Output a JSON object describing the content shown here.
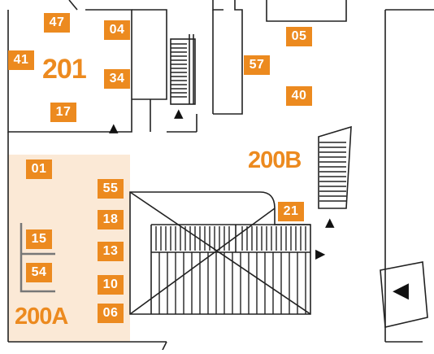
{
  "rooms": {
    "r201": "201",
    "r200B": "200B",
    "r200A": "200A"
  },
  "tags": {
    "t47": "47",
    "t04": "04",
    "t41": "41",
    "t34": "34",
    "t17": "17",
    "t05": "05",
    "t57": "57",
    "t40": "40",
    "t01": "01",
    "t55": "55",
    "t21": "21",
    "t18": "18",
    "t15": "15",
    "t13": "13",
    "t54": "54",
    "t10": "10",
    "t06": "06"
  },
  "icons": {
    "up": "▲",
    "right": "▶",
    "left": "◀"
  },
  "colors": {
    "accent": "#ec8a1f",
    "highlight_area": "#fbe9d6",
    "walls": "#222222"
  }
}
